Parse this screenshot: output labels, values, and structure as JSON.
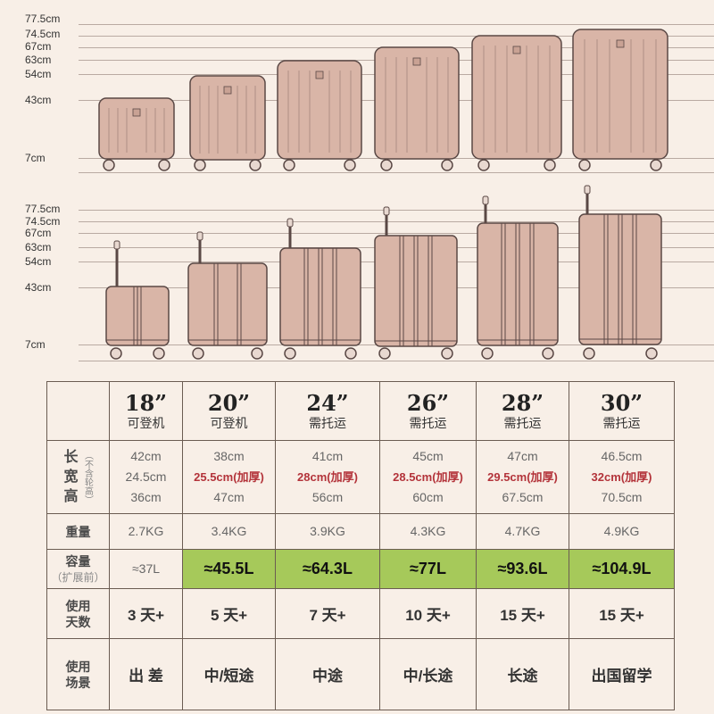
{
  "height_labels": [
    "77.5cm",
    "74.5cm",
    "67cm",
    "63cm",
    "54cm",
    "43cm",
    "7cm"
  ],
  "colors": {
    "case_fill": "#d9b5a7",
    "case_stroke": "#5a4845",
    "highlight": "#a6c95a",
    "red_text": "#b3333a"
  },
  "table": {
    "headers": [
      {
        "size": "18”",
        "note": "可登机"
      },
      {
        "size": "20”",
        "note": "可登机"
      },
      {
        "size": "24”",
        "note": "需托运"
      },
      {
        "size": "26”",
        "note": "需托运"
      },
      {
        "size": "28”",
        "note": "需托运"
      },
      {
        "size": "30”",
        "note": "需托运"
      }
    ],
    "dims_label": {
      "main": [
        "长",
        "宽",
        "高"
      ],
      "sub": "（不含轮高）"
    },
    "length": [
      "42cm",
      "38cm",
      "41cm",
      "45cm",
      "47cm",
      "46.5cm"
    ],
    "width": [
      "24.5cm",
      "25.5cm(加厚)",
      "28cm(加厚)",
      "28.5cm(加厚)",
      "29.5cm(加厚)",
      "32cm(加厚)"
    ],
    "height": [
      "36cm",
      "47cm",
      "56cm",
      "60cm",
      "67.5cm",
      "70.5cm"
    ],
    "weight_label": "重量",
    "weight": [
      "2.7KG",
      "3.4KG",
      "3.9KG",
      "4.3KG",
      "4.7KG",
      "4.9KG"
    ],
    "capacity_label": "容量",
    "capacity_sub": "（扩展前）",
    "capacity": [
      "≈37L",
      "≈45.5L",
      "≈64.3L",
      "≈77L",
      "≈93.6L",
      "≈104.9L"
    ],
    "days_label": [
      "使用",
      "天数"
    ],
    "days": [
      "3 天+",
      "5 天+",
      "7 天+",
      "10 天+",
      "15 天+",
      "15 天+"
    ],
    "scene_label": [
      "使用",
      "场景"
    ],
    "scene": [
      "出 差",
      "中/短途",
      "中途",
      "中/长途",
      "长途",
      "出国留学"
    ]
  }
}
